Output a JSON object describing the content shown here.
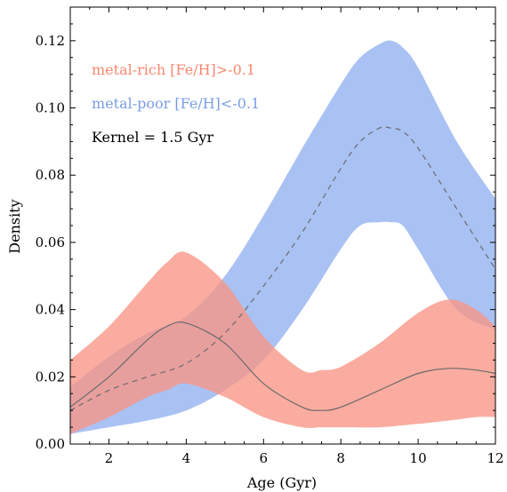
{
  "chart_data": {
    "type": "area",
    "xlabel": "Age (Gyr)",
    "ylabel": "Density",
    "xlim": [
      1,
      12
    ],
    "ylim": [
      0,
      0.13
    ],
    "xticks": [
      2,
      4,
      6,
      8,
      10,
      12
    ],
    "yticks": [
      0.0,
      0.02,
      0.04,
      0.06,
      0.08,
      0.1,
      0.12
    ],
    "xtick_labels": [
      "2",
      "4",
      "6",
      "8",
      "10",
      "12"
    ],
    "ytick_labels": [
      "0.00",
      "0.02",
      "0.04",
      "0.06",
      "0.08",
      "0.10",
      "0.12"
    ],
    "grid": false,
    "annotations": [
      {
        "text": "metal-rich [Fe/H]>-0.1",
        "color": "#f9876f"
      },
      {
        "text": "metal-poor [Fe/H]<-0.1",
        "color": "#7a9ee8"
      },
      {
        "text": "Kernel = 1.5 Gyr",
        "color": "#000000"
      }
    ],
    "series": [
      {
        "label": "metal-poor [Fe/H]<-0.1",
        "color": "#a4bff2",
        "line_style": "dashed",
        "x": [
          1,
          2,
          3,
          4,
          5,
          6,
          7,
          8,
          8.5,
          9,
          9.3,
          9.6,
          10,
          11,
          12
        ],
        "lower": [
          0.003,
          0.005,
          0.007,
          0.01,
          0.016,
          0.025,
          0.04,
          0.058,
          0.065,
          0.066,
          0.066,
          0.065,
          0.058,
          0.04,
          0.034
        ],
        "median": [
          0.01,
          0.016,
          0.02,
          0.024,
          0.033,
          0.047,
          0.063,
          0.082,
          0.09,
          0.094,
          0.094,
          0.093,
          0.088,
          0.07,
          0.052
        ],
        "upper": [
          0.017,
          0.026,
          0.033,
          0.038,
          0.05,
          0.068,
          0.088,
          0.107,
          0.115,
          0.119,
          0.12,
          0.118,
          0.112,
          0.09,
          0.073
        ]
      },
      {
        "label": "metal-rich [Fe/H]>-0.1",
        "color": "#f99585",
        "line_style": "solid",
        "x": [
          1,
          2,
          3,
          3.5,
          4,
          5,
          6,
          7,
          7.5,
          8,
          9,
          10,
          10.8,
          11.5,
          12
        ],
        "lower": [
          0.003,
          0.008,
          0.014,
          0.016,
          0.018,
          0.014,
          0.008,
          0.005,
          0.005,
          0.005,
          0.005,
          0.006,
          0.007,
          0.008,
          0.008
        ],
        "median": [
          0.011,
          0.02,
          0.031,
          0.035,
          0.036,
          0.03,
          0.018,
          0.011,
          0.01,
          0.011,
          0.016,
          0.021,
          0.0225,
          0.022,
          0.021
        ],
        "upper": [
          0.025,
          0.035,
          0.048,
          0.054,
          0.057,
          0.048,
          0.032,
          0.022,
          0.022,
          0.023,
          0.03,
          0.039,
          0.043,
          0.04,
          0.035
        ]
      }
    ]
  }
}
